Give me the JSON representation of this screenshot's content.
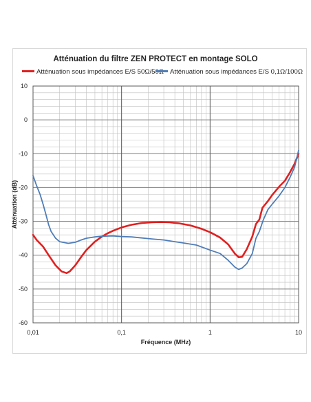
{
  "chart_data": {
    "type": "line",
    "title": "Atténuation du filtre ZEN PROTECT en montage SOLO",
    "xlabel": "Fréquence (MHz)",
    "ylabel": "Atténuation (dB)",
    "x_scale": "log",
    "xlim": [
      0.01,
      10
    ],
    "ylim": [
      -60,
      10
    ],
    "x_ticks": [
      "0,01",
      "0,1",
      "1",
      "10"
    ],
    "y_ticks": [
      "10",
      "0",
      "-10",
      "-20",
      "-30",
      "-40",
      "-50",
      "-60"
    ],
    "grid": true,
    "legend_position": "top",
    "series": [
      {
        "name": "Atténuation sous impédances E/S 50Ω/50Ω",
        "color": "#e02020",
        "x": [
          0.01,
          0.011,
          0.013,
          0.015,
          0.018,
          0.021,
          0.024,
          0.026,
          0.03,
          0.035,
          0.04,
          0.05,
          0.06,
          0.07,
          0.08,
          0.1,
          0.13,
          0.17,
          0.22,
          0.28,
          0.35,
          0.45,
          0.6,
          0.8,
          1.0,
          1.3,
          1.6,
          1.9,
          2.1,
          2.3,
          2.6,
          3.0,
          3.3,
          3.6,
          3.9,
          4.5,
          5.0,
          6.0,
          7.0,
          8.0,
          9.0,
          10.0
        ],
        "y": [
          -34,
          -35.5,
          -37.5,
          -40,
          -43,
          -44.8,
          -45.3,
          -44.8,
          -43,
          -40.5,
          -38.5,
          -36,
          -34.5,
          -33.5,
          -32.8,
          -31.8,
          -31,
          -30.5,
          -30.3,
          -30.2,
          -30.3,
          -30.6,
          -31.2,
          -32.2,
          -33.2,
          -34.8,
          -36.8,
          -39.5,
          -40.6,
          -40.5,
          -38.2,
          -34.5,
          -30.8,
          -29.5,
          -26,
          -24,
          -22.3,
          -19.8,
          -18,
          -15.5,
          -13,
          -10
        ]
      },
      {
        "name": "Atténuation sous impédances E/S 0,1Ω/100Ω",
        "color": "#4f7db8",
        "x": [
          0.01,
          0.011,
          0.012,
          0.013,
          0.014,
          0.015,
          0.016,
          0.018,
          0.02,
          0.025,
          0.03,
          0.035,
          0.04,
          0.05,
          0.06,
          0.08,
          0.1,
          0.13,
          0.17,
          0.22,
          0.3,
          0.4,
          0.5,
          0.7,
          1.0,
          1.3,
          1.6,
          1.9,
          2.1,
          2.3,
          2.6,
          3.0,
          3.3,
          3.6,
          4.0,
          4.5,
          5.0,
          6.0,
          7.0,
          8.0,
          9.0,
          10.0
        ],
        "y": [
          -16.5,
          -19.5,
          -22,
          -25,
          -28,
          -31,
          -33,
          -35,
          -36,
          -36.5,
          -36.2,
          -35.5,
          -35,
          -34.6,
          -34.4,
          -34.3,
          -34.5,
          -34.6,
          -34.9,
          -35.2,
          -35.5,
          -36,
          -36.4,
          -37,
          -38.5,
          -39.5,
          -41.5,
          -43.5,
          -44.2,
          -43.8,
          -42.5,
          -39.5,
          -35,
          -33,
          -29.5,
          -26.5,
          -25,
          -22.5,
          -20,
          -17,
          -14,
          -9
        ]
      }
    ]
  }
}
